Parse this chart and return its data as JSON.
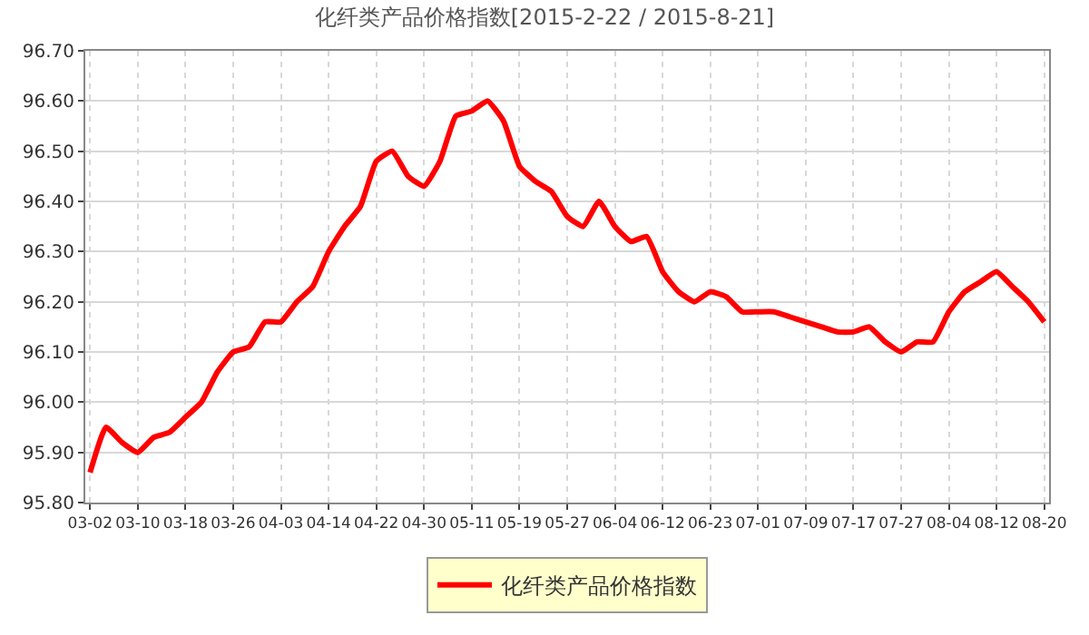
{
  "chart_data": {
    "type": "line",
    "title": "化纤类产品价格指数[2015-2-22 / 2015-8-21]",
    "categories": [
      "03-02",
      null,
      null,
      "03-10",
      null,
      null,
      "03-18",
      null,
      null,
      "03-26",
      null,
      null,
      "04-03",
      null,
      null,
      "04-14",
      null,
      null,
      "04-22",
      null,
      null,
      "04-30",
      null,
      null,
      "05-11",
      null,
      null,
      "05-19",
      null,
      null,
      "05-27",
      null,
      null,
      "06-04",
      null,
      null,
      "06-12",
      null,
      null,
      "06-23",
      null,
      null,
      "07-01",
      null,
      null,
      "07-09",
      null,
      null,
      "07-17",
      null,
      null,
      "07-27",
      null,
      null,
      "08-04",
      null,
      null,
      "08-12",
      null,
      null,
      "08-20"
    ],
    "series": [
      {
        "name": "化纤类产品价格指数",
        "color": "#ff0000",
        "values": [
          95.86,
          95.95,
          95.92,
          95.9,
          95.93,
          95.94,
          95.97,
          96.0,
          96.06,
          96.1,
          96.11,
          96.16,
          96.16,
          96.2,
          96.23,
          96.3,
          96.35,
          96.39,
          96.48,
          96.5,
          96.45,
          96.43,
          96.48,
          96.57,
          96.58,
          96.6,
          96.56,
          96.47,
          96.44,
          96.42,
          96.37,
          96.35,
          96.4,
          96.35,
          96.32,
          96.33,
          96.26,
          96.22,
          96.2,
          96.22,
          96.21,
          96.18,
          96.18,
          96.18,
          96.17,
          96.16,
          96.15,
          96.14,
          96.14,
          96.15,
          96.12,
          96.1,
          96.12,
          96.12,
          96.18,
          96.22,
          96.24,
          96.26,
          96.23,
          96.2,
          96.16
        ]
      }
    ],
    "ylim": [
      95.8,
      96.7
    ],
    "yticks": [
      {
        "value": 95.8,
        "label": "95.80"
      },
      {
        "value": 95.9,
        "label": "95.90"
      },
      {
        "value": 96.0,
        "label": "96.00"
      },
      {
        "value": 96.1,
        "label": "96.10"
      },
      {
        "value": 96.2,
        "label": "96.20"
      },
      {
        "value": 96.3,
        "label": "96.30"
      },
      {
        "value": 96.4,
        "label": "96.40"
      },
      {
        "value": 96.5,
        "label": "96.50"
      },
      {
        "value": 96.6,
        "label": "96.60"
      },
      {
        "value": 96.7,
        "label": "96.70"
      }
    ],
    "grid": true,
    "legend": "bottom",
    "marker": "none",
    "line_style": "solid"
  }
}
